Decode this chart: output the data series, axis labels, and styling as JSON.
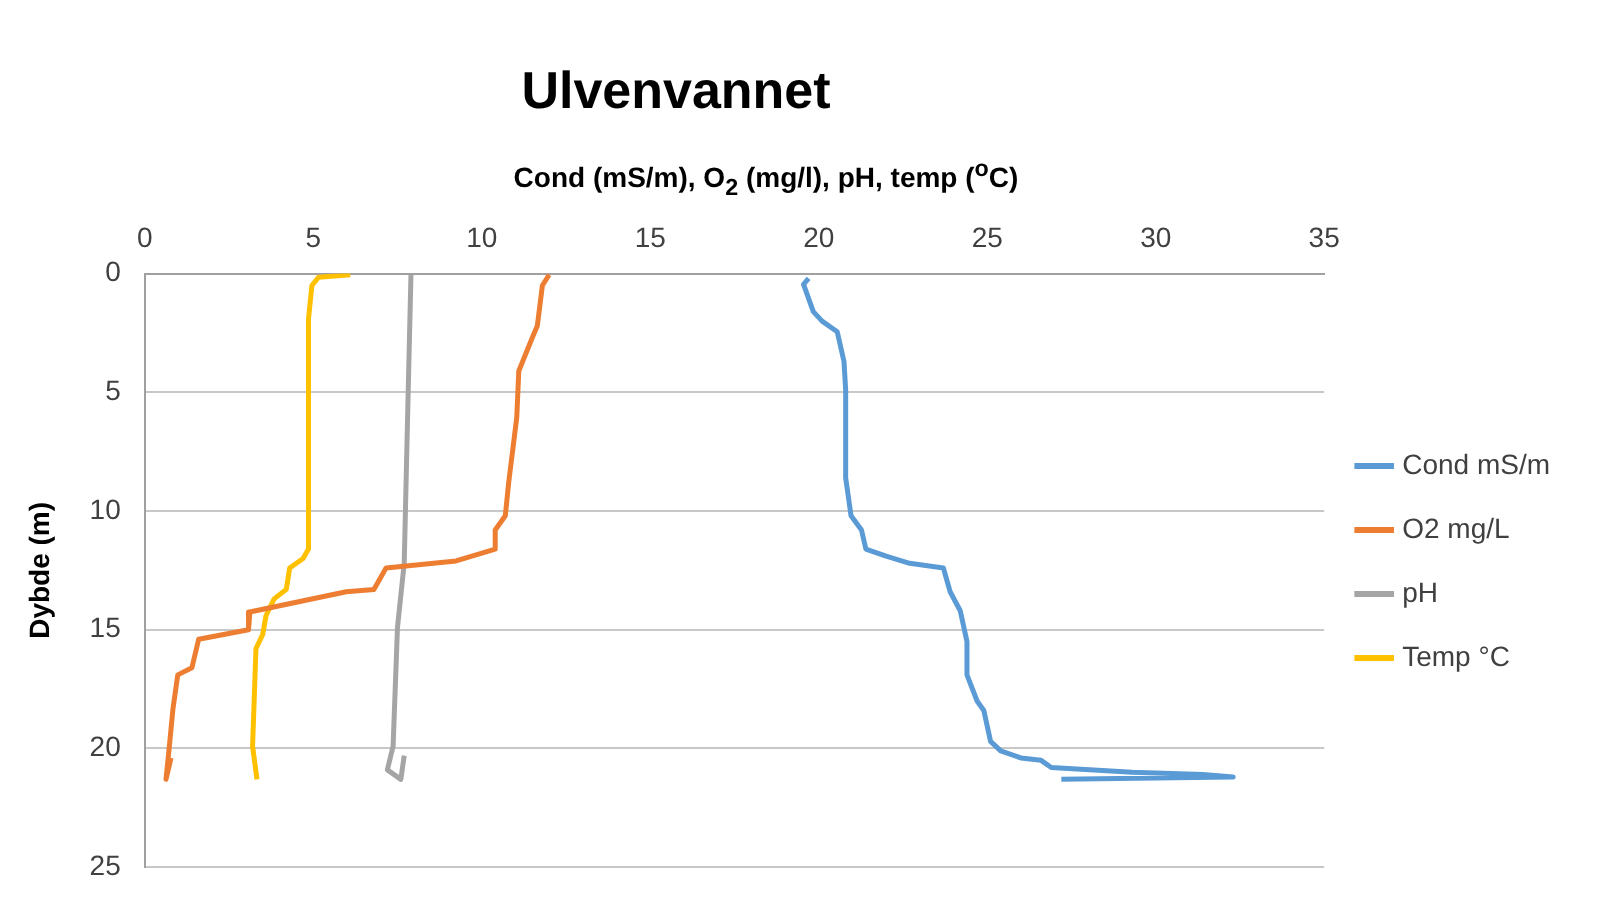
{
  "chart_data": {
    "type": "line",
    "title": "Ulvenvannet",
    "xlabel": "Cond (mS/m), O$_{2}$ (mg/l), pH, temp ($^{o}$C)",
    "ylabel": "Dybde (m)",
    "xlim": [
      0,
      35
    ],
    "xticks": [
      0,
      5,
      10,
      15,
      20,
      25,
      30,
      35
    ],
    "ylim": [
      25,
      0
    ],
    "yticks": [
      0,
      5,
      10,
      15,
      20,
      25
    ],
    "grid": "y",
    "legend": "right",
    "marker": "none",
    "line_style": "solid",
    "series": [
      {
        "name": "Cond mS/m",
        "color": "#5b9bd5",
        "x": [
          19.7,
          19.55,
          19.84,
          20.1,
          20.55,
          20.75,
          20.8,
          20.8,
          20.96,
          21.27,
          21.4,
          22.0,
          22.7,
          23.7,
          23.9,
          24.2,
          24.4,
          24.4,
          24.7,
          24.9,
          25.1,
          25.4,
          26.0,
          26.6,
          26.9,
          29.3,
          31.4,
          32.3,
          27.2
        ],
        "values": [
          0.2,
          0.45,
          1.6,
          2.0,
          2.45,
          3.7,
          4.9,
          8.6,
          10.2,
          10.8,
          11.6,
          11.9,
          12.2,
          12.4,
          13.4,
          14.2,
          15.5,
          16.9,
          18.0,
          18.4,
          19.7,
          20.1,
          20.4,
          20.5,
          20.8,
          21.0,
          21.1,
          21.2,
          21.3
        ]
      },
      {
        "name": "O2 mg/L",
        "color": "#ed7d31",
        "x": [
          12.0,
          11.8,
          11.65,
          11.5,
          11.1,
          11.04,
          10.8,
          10.7,
          10.4,
          10.4,
          9.24,
          7.16,
          6.8,
          5.98,
          3.12,
          3.08,
          1.6,
          1.4,
          0.98,
          0.84,
          0.71,
          0.63,
          0.78
        ],
        "values": [
          0.05,
          0.5,
          2.2,
          2.7,
          4.1,
          6.05,
          8.8,
          10.2,
          10.8,
          11.6,
          12.1,
          12.4,
          13.3,
          13.4,
          14.25,
          15.0,
          15.4,
          16.6,
          16.9,
          18.3,
          20.2,
          21.3,
          20.4
        ]
      },
      {
        "name": "pH",
        "color": "#a5a5a5",
        "x": [
          7.9,
          7.8,
          7.7,
          7.5,
          7.37,
          7.2,
          7.6,
          7.7
        ],
        "values": [
          0.05,
          6.05,
          12.2,
          14.9,
          19.9,
          20.9,
          21.3,
          20.3
        ]
      },
      {
        "name": "Temp °C",
        "color": "#ffc000",
        "x": [
          6.1,
          5.16,
          4.96,
          4.86,
          4.86,
          4.7,
          4.3,
          4.2,
          3.84,
          3.6,
          3.5,
          3.3,
          3.2,
          3.33
        ],
        "values": [
          0.05,
          0.15,
          0.5,
          1.9,
          11.6,
          12.0,
          12.4,
          13.3,
          13.7,
          14.4,
          15.2,
          15.8,
          19.9,
          21.3
        ]
      }
    ]
  }
}
